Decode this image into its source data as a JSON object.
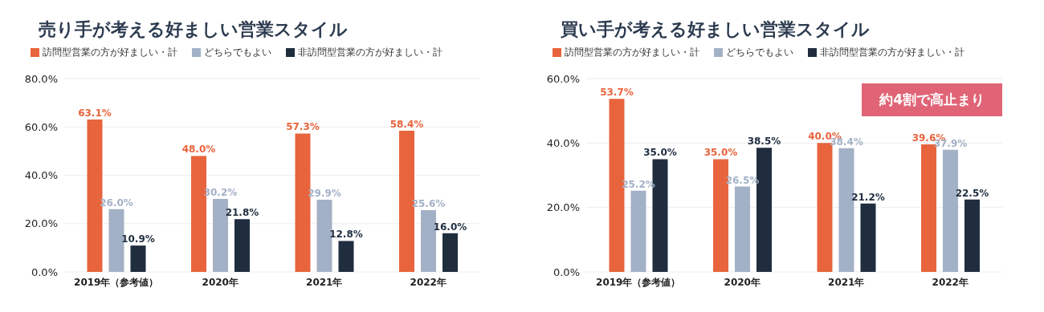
{
  "chart_data": [
    {
      "type": "bar",
      "title": "売り手が考える好ましい営業スタイル",
      "categories": [
        "2019年（参考値）",
        "2020年",
        "2021年",
        "2022年"
      ],
      "series": [
        {
          "name": "訪問型営業の方が好ましい・計",
          "color": "#e8643c",
          "values": [
            63.1,
            48.0,
            57.3,
            58.4
          ],
          "value_labels": [
            "63.1%",
            "48.0%",
            "57.3%",
            "58.4%"
          ]
        },
        {
          "name": "どちらでもよい",
          "color": "#a3b1c6",
          "values": [
            26.0,
            30.2,
            29.9,
            25.6
          ],
          "value_labels": [
            "26.0%",
            "30.2%",
            "29.9%",
            "25.6%"
          ]
        },
        {
          "name": "非訪問型営業の方が好ましい・計",
          "color": "#1f2d3f",
          "values": [
            10.9,
            21.8,
            12.8,
            16.0
          ],
          "value_labels": [
            "10.9%",
            "21.8%",
            "12.8%",
            "16.0%"
          ]
        }
      ],
      "ylim": [
        0,
        80
      ],
      "yticks": [
        {
          "value": 0,
          "label": "0.0%"
        },
        {
          "value": 20,
          "label": "20.0%"
        },
        {
          "value": 40,
          "label": "40.0%"
        },
        {
          "value": 60,
          "label": "60.0%"
        },
        {
          "value": 80,
          "label": "80.0%"
        }
      ],
      "grid": "y",
      "legend": "top"
    },
    {
      "type": "bar",
      "title": "買い手が考える好ましい営業スタイル",
      "categories": [
        "2019年（参考値）",
        "2020年",
        "2021年",
        "2022年"
      ],
      "series": [
        {
          "name": "訪問型営業の方が好ましい・計",
          "color": "#e8643c",
          "values": [
            53.7,
            35.0,
            40.0,
            39.6
          ],
          "value_labels": [
            "53.7%",
            "35.0%",
            "40.0%",
            "39.6%"
          ]
        },
        {
          "name": "どちらでもよい",
          "color": "#a3b1c6",
          "values": [
            25.2,
            26.5,
            38.4,
            37.9
          ],
          "value_labels": [
            "25.2%",
            "26.5%",
            "38.4%",
            "37.9%"
          ]
        },
        {
          "name": "非訪問型営業の方が好ましい・計",
          "color": "#1f2d3f",
          "values": [
            35.0,
            38.5,
            21.2,
            22.5
          ],
          "value_labels": [
            "35.0%",
            "38.5%",
            "21.2%",
            "22.5%"
          ]
        }
      ],
      "ylim": [
        0,
        60
      ],
      "yticks": [
        {
          "value": 0,
          "label": "0.0%"
        },
        {
          "value": 20,
          "label": "20.0%"
        },
        {
          "value": 40,
          "label": "40.0%"
        },
        {
          "value": 60,
          "label": "60.0%"
        }
      ],
      "grid": "y",
      "legend": "top",
      "annotations": [
        "約4割で高止まり"
      ]
    }
  ]
}
